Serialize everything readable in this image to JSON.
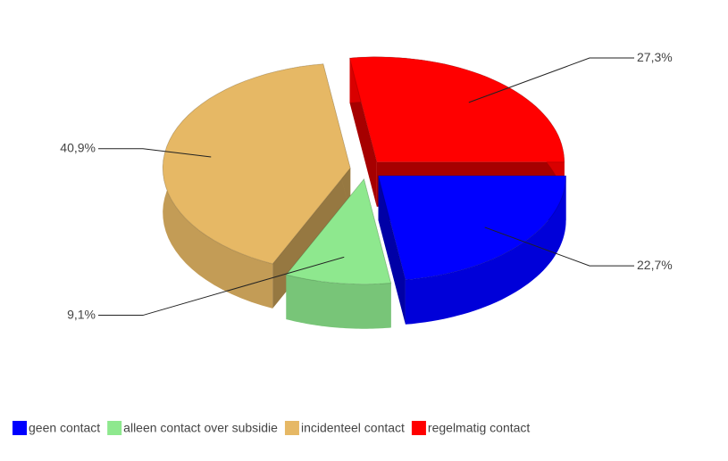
{
  "chart_data": {
    "type": "pie",
    "categories": [
      "geen contact",
      "alleen contact over subsidie",
      "incidenteel contact",
      "regelmatig contact"
    ],
    "values": [
      22.7,
      9.1,
      40.9,
      27.3
    ],
    "value_labels": [
      "22,7%",
      "9,1%",
      "40,9%",
      "27,3%"
    ],
    "colors": [
      "#0000ff",
      "#8ee88e",
      "#e6b865",
      "#ff0000"
    ],
    "legend": "bottom"
  }
}
